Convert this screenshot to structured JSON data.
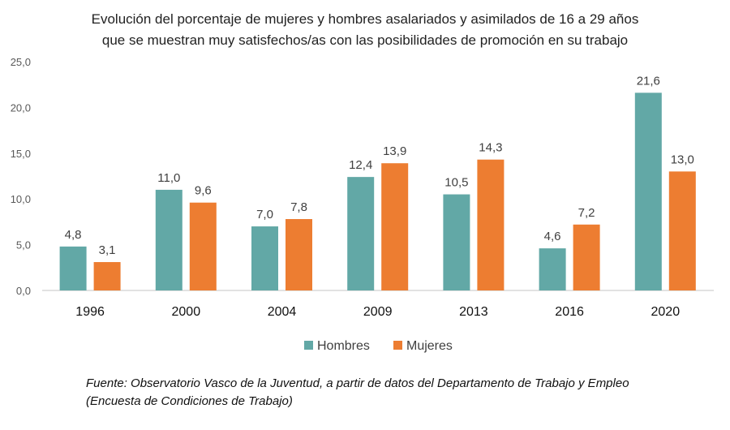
{
  "chart_data": {
    "type": "bar",
    "title": [
      "Evolución del porcentaje de mujeres y hombres asalariados y asimilados de 16 a 29 años",
      "que se muestran muy satisfechos/as con las posibilidades de promoción en su trabajo"
    ],
    "categories": [
      "1996",
      "2000",
      "2004",
      "2009",
      "2013",
      "2016",
      "2020"
    ],
    "series": [
      {
        "name": "Hombres",
        "color": "#62A8A6",
        "values": [
          4.8,
          11.0,
          7.0,
          12.4,
          10.5,
          4.6,
          21.6
        ],
        "labels": [
          "4,8",
          "11,0",
          "7,0",
          "12,4",
          "10,5",
          "4,6",
          "21,6"
        ]
      },
      {
        "name": "Mujeres",
        "color": "#ED7D31",
        "values": [
          3.1,
          9.6,
          7.8,
          13.9,
          14.3,
          7.2,
          13.0
        ],
        "labels": [
          "3,1",
          "9,6",
          "7,8",
          "13,9",
          "14,3",
          "7,2",
          "13,0"
        ]
      }
    ],
    "ylim": [
      0,
      25
    ],
    "yticks": [
      "0,0",
      "5,0",
      "10,0",
      "15,0",
      "20,0",
      "25,0"
    ],
    "grid": false,
    "legend": "bottom"
  },
  "source": [
    "Fuente: Observatorio Vasco de la Juventud, a partir de datos del Departamento de Trabajo y Empleo",
    "(Encuesta de Condiciones de Trabajo)"
  ]
}
